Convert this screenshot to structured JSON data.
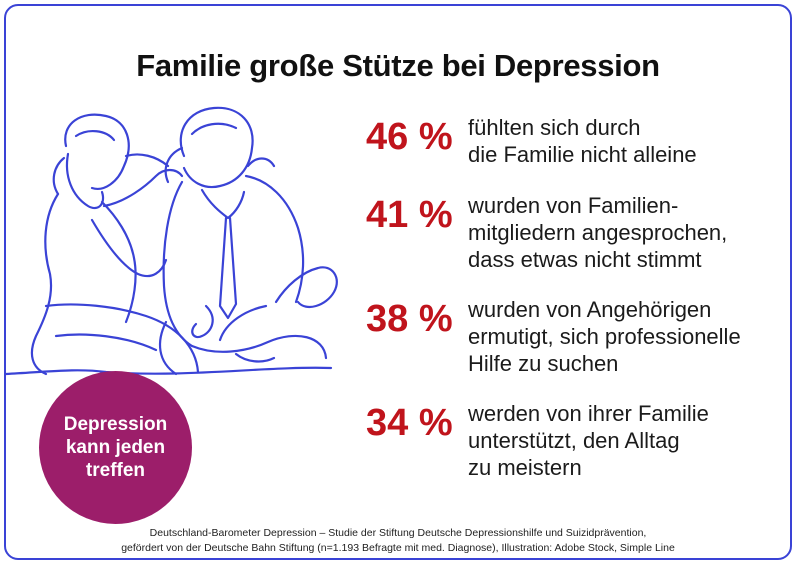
{
  "title": "Familie große Stütze bei Depression",
  "stats": [
    {
      "percent": "46 %",
      "text": "fühlten sich durch\ndie Familie nicht alleine"
    },
    {
      "percent": "41 %",
      "text": "wurden von Familien-\nmitgliedern angesprochen,\ndass etwas nicht stimmt"
    },
    {
      "percent": "38 %",
      "text": "wurden von Angehörigen\nermutigt, sich professionelle\nHilfe zu suchen"
    },
    {
      "percent": "34 %",
      "text": "werden von ihrer Familie\nunterstützt, den Alltag\nzu meistern"
    }
  ],
  "badge": "Depression\nkann jeden\ntreffen",
  "footer": {
    "line1": "Deutschland-Barometer Depression – Studie der Stiftung Deutsche Depressionshilfe und Suizidprävention,",
    "line2": "gefördert von der Deutsche Bahn Stiftung (n=1.193 Befragte mit med. Diagnose), Illustration: Adobe Stock, Simple Line"
  },
  "colors": {
    "frame": "#3a43d6",
    "line_art": "#3a43d6",
    "percent": "#c0141c",
    "badge": "#9c1e6a"
  },
  "icons": {
    "illustration": "two-people-line-art-icon"
  }
}
